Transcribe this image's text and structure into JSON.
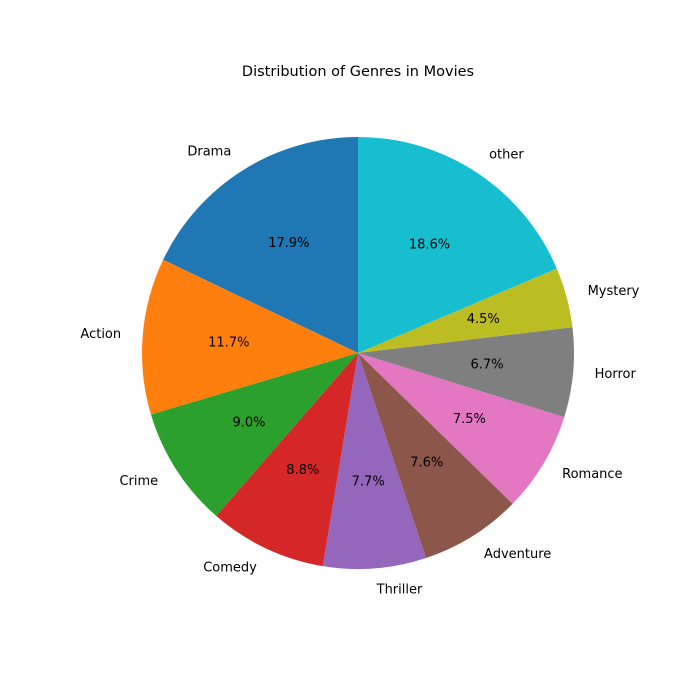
{
  "chart_data": {
    "type": "pie",
    "title": "Distribution of Genres in Movies",
    "start_angle_deg": 90,
    "direction": "counterclockwise",
    "slices": [
      {
        "label": "Drama",
        "value": 17.9,
        "pct_label": "17.9%",
        "color": "#1f77b4"
      },
      {
        "label": "Action",
        "value": 11.7,
        "pct_label": "11.7%",
        "color": "#ff7f0e"
      },
      {
        "label": "Crime",
        "value": 9.0,
        "pct_label": "9.0%",
        "color": "#2ca02c"
      },
      {
        "label": "Comedy",
        "value": 8.8,
        "pct_label": "8.8%",
        "color": "#d62728"
      },
      {
        "label": "Thriller",
        "value": 7.7,
        "pct_label": "7.7%",
        "color": "#9467bd"
      },
      {
        "label": "Adventure",
        "value": 7.6,
        "pct_label": "7.6%",
        "color": "#8c564b"
      },
      {
        "label": "Romance",
        "value": 7.5,
        "pct_label": "7.5%",
        "color": "#e377c2"
      },
      {
        "label": "Horror",
        "value": 6.7,
        "pct_label": "6.7%",
        "color": "#7f7f7f"
      },
      {
        "label": "Mystery",
        "value": 4.5,
        "pct_label": "4.5%",
        "color": "#bcbd22"
      },
      {
        "label": "other",
        "value": 18.6,
        "pct_label": "18.6%",
        "color": "#17becf"
      }
    ]
  }
}
